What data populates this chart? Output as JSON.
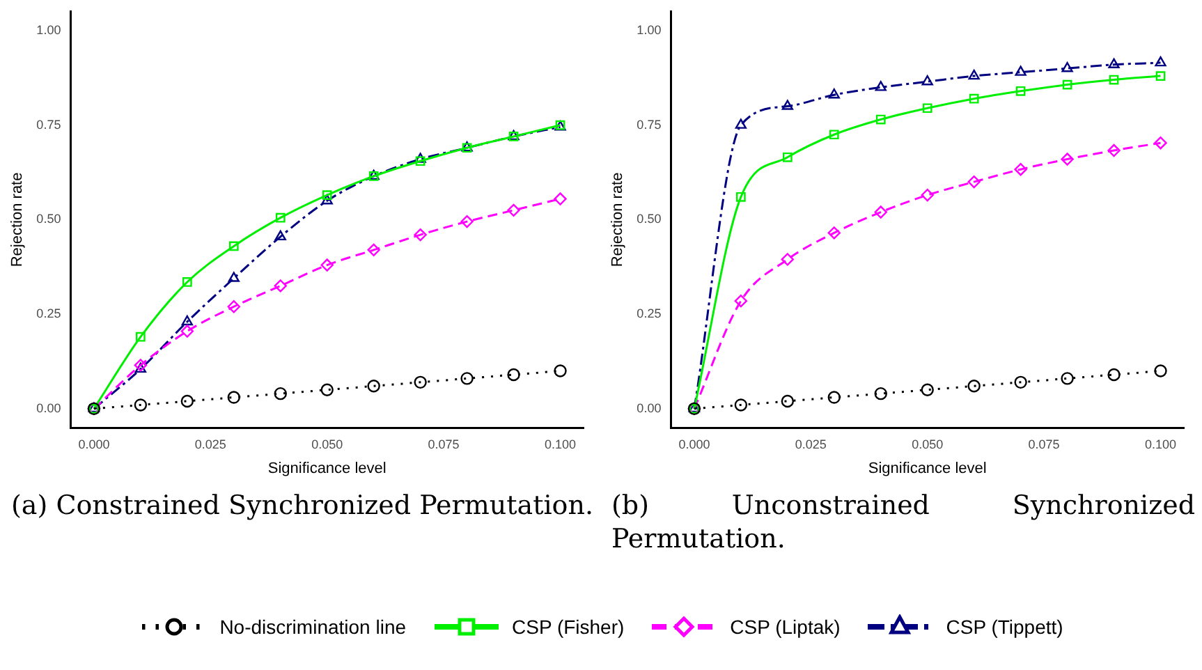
{
  "chart_data": [
    {
      "type": "line",
      "subtitle": "(a) Constrained Synchronized Permutation.",
      "xlabel": "Significance level",
      "ylabel": "Rejection rate",
      "x": [
        0,
        0.01,
        0.02,
        0.03,
        0.04,
        0.05,
        0.06,
        0.07,
        0.08,
        0.09,
        0.1
      ],
      "series": [
        {
          "name": "No-discrimination line",
          "color": "#000000",
          "marker": "circle",
          "line_style": "dotted",
          "values": [
            0,
            0.01,
            0.02,
            0.03,
            0.04,
            0.05,
            0.06,
            0.07,
            0.08,
            0.09,
            0.1
          ]
        },
        {
          "name": "CSP (Fisher)",
          "color": "#00ee00",
          "marker": "square",
          "line_style": "solid",
          "values": [
            0,
            0.19,
            0.335,
            0.43,
            0.505,
            0.565,
            0.615,
            0.655,
            0.69,
            0.72,
            0.75
          ]
        },
        {
          "name": "CSP (Liptak)",
          "color": "#ff00ff",
          "marker": "diamond",
          "line_style": "dashed",
          "values": [
            0,
            0.115,
            0.205,
            0.27,
            0.325,
            0.38,
            0.42,
            0.46,
            0.495,
            0.525,
            0.555
          ]
        },
        {
          "name": "CSP (Tippett)",
          "color": "#000080",
          "marker": "triangle",
          "line_style": "dashdot",
          "values": [
            0,
            0.105,
            0.23,
            0.345,
            0.455,
            0.55,
            0.615,
            0.66,
            0.69,
            0.72,
            0.745
          ]
        }
      ],
      "xlim": [
        -0.005,
        0.105
      ],
      "xticks": [
        {
          "value": 0,
          "label": "0.000"
        },
        {
          "value": 0.025,
          "label": "0.025"
        },
        {
          "value": 0.05,
          "label": "0.050"
        },
        {
          "value": 0.075,
          "label": "0.075"
        },
        {
          "value": 0.1,
          "label": "0.100"
        }
      ],
      "ylim": [
        -0.05,
        1.05
      ],
      "yticks": [
        {
          "value": 0,
          "label": "0.00"
        },
        {
          "value": 0.25,
          "label": "0.25"
        },
        {
          "value": 0.5,
          "label": "0.50"
        },
        {
          "value": 0.75,
          "label": "0.75"
        },
        {
          "value": 1,
          "label": "1.00"
        }
      ],
      "grid": false,
      "legend": "bottom"
    },
    {
      "type": "line",
      "subtitle": "(b) Unconstrained Synchronized Permutation.",
      "xlabel": "Significance level",
      "ylabel": "Rejection rate",
      "x": [
        0,
        0.01,
        0.02,
        0.03,
        0.04,
        0.05,
        0.06,
        0.07,
        0.08,
        0.09,
        0.1
      ],
      "series": [
        {
          "color": "#000000",
          "marker": "circle",
          "line_style": "dotted",
          "values": [
            0,
            0.01,
            0.02,
            0.03,
            0.04,
            0.05,
            0.06,
            0.07,
            0.08,
            0.09,
            0.1
          ]
        },
        {
          "color": "#00ee00",
          "marker": "square",
          "line_style": "solid",
          "values": [
            0,
            0.56,
            0.665,
            0.725,
            0.765,
            0.795,
            0.82,
            0.84,
            0.857,
            0.87,
            0.88
          ]
        },
        {
          "color": "#ff00ff",
          "marker": "diamond",
          "line_style": "dashed",
          "values": [
            0,
            0.285,
            0.395,
            0.465,
            0.52,
            0.565,
            0.6,
            0.633,
            0.66,
            0.683,
            0.703
          ]
        },
        {
          "color": "#000080",
          "marker": "triangle",
          "line_style": "dashdot",
          "values": [
            0,
            0.75,
            0.8,
            0.83,
            0.85,
            0.865,
            0.88,
            0.89,
            0.9,
            0.91,
            0.915
          ]
        }
      ],
      "xlim": [
        -0.005,
        0.105
      ],
      "xticks": [
        {
          "value": 0,
          "label": "0.000"
        },
        {
          "value": 0.025,
          "label": "0.025"
        },
        {
          "value": 0.05,
          "label": "0.050"
        },
        {
          "value": 0.075,
          "label": "0.075"
        },
        {
          "value": 0.1,
          "label": "0.100"
        }
      ],
      "ylim": [
        -0.05,
        1.05
      ],
      "yticks": [
        {
          "value": 0,
          "label": "0.00"
        },
        {
          "value": 0.25,
          "label": "0.25"
        },
        {
          "value": 0.5,
          "label": "0.50"
        },
        {
          "value": 0.75,
          "label": "0.75"
        },
        {
          "value": 1,
          "label": "1.00"
        }
      ],
      "grid": false
    }
  ]
}
